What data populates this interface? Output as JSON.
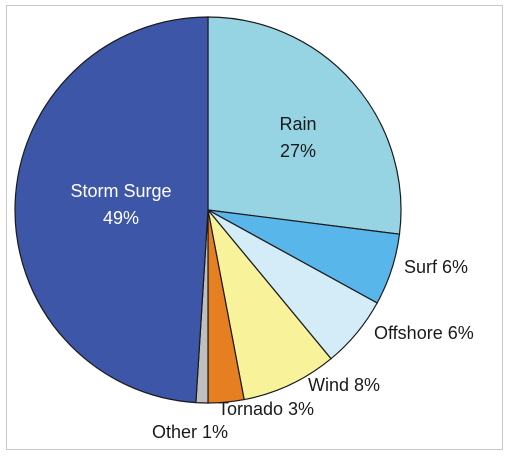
{
  "chart_data": {
    "type": "pie",
    "title": "",
    "slices": [
      {
        "label": "Rain",
        "value": 27,
        "value_text": "27%",
        "color": "#96d4e3"
      },
      {
        "label": "Surf",
        "value": 6,
        "value_text": "6%",
        "color": "#59b6ea"
      },
      {
        "label": "Offshore",
        "value": 6,
        "value_text": "6%",
        "color": "#d3ecf7"
      },
      {
        "label": "Wind",
        "value": 8,
        "value_text": "8%",
        "color": "#f8f29a"
      },
      {
        "label": "Tornado",
        "value": 3,
        "value_text": "3%",
        "color": "#e67e22"
      },
      {
        "label": "Other",
        "value": 1,
        "value_text": "1%",
        "color": "#bfbfbf"
      },
      {
        "label": "Storm Surge",
        "value": 49,
        "value_text": "49%",
        "color": "#3d56a7"
      }
    ],
    "legend": "none",
    "slice_outline_color": "#1a1a1a"
  }
}
